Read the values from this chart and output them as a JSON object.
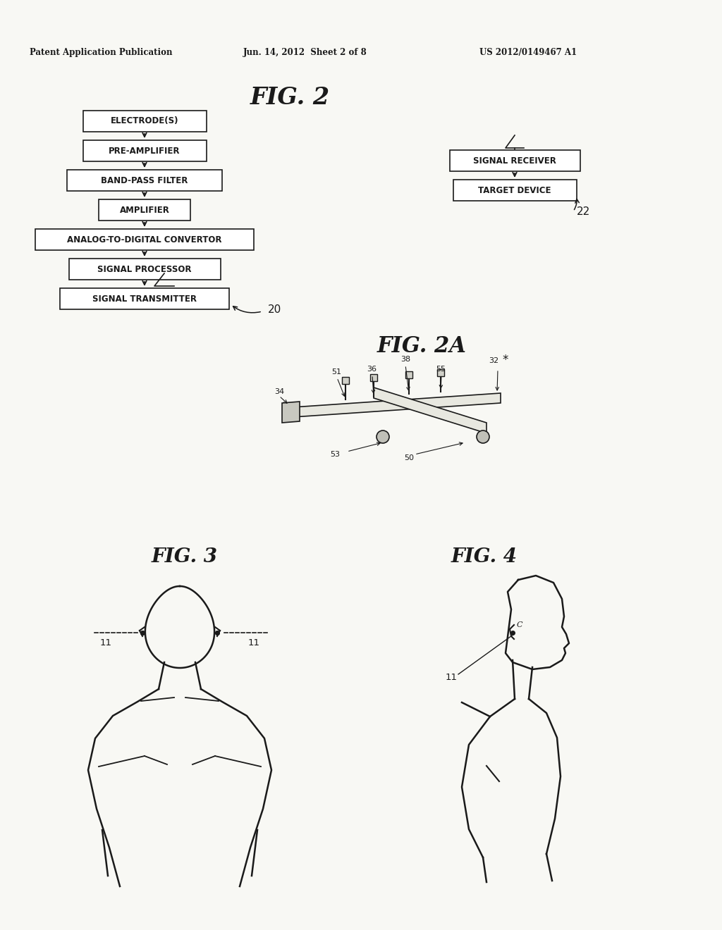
{
  "bg_color": "#f8f8f4",
  "header_left": "Patent Application Publication",
  "header_mid": "Jun. 14, 2012  Sheet 2 of 8",
  "header_right": "US 2012/0149467 A1",
  "fig2_title": "FIG. 2",
  "fig2a_title": "FIG. 2A",
  "fig3_title": "FIG. 3",
  "fig4_title": "FIG. 4",
  "flowchart_boxes": [
    "ELECTRODE(S)",
    "PRE-AMPLIFIER",
    "BAND-PASS FILTER",
    "AMPLIFIER",
    "ANALOG-TO-DIGITAL CONVERTOR",
    "SIGNAL PROCESSOR",
    "SIGNAL TRANSMITTER"
  ],
  "right_boxes": [
    "SIGNAL RECEIVER",
    "TARGET DEVICE"
  ],
  "label_20": "20",
  "label_22": "22",
  "text_color": "#1a1a1a"
}
